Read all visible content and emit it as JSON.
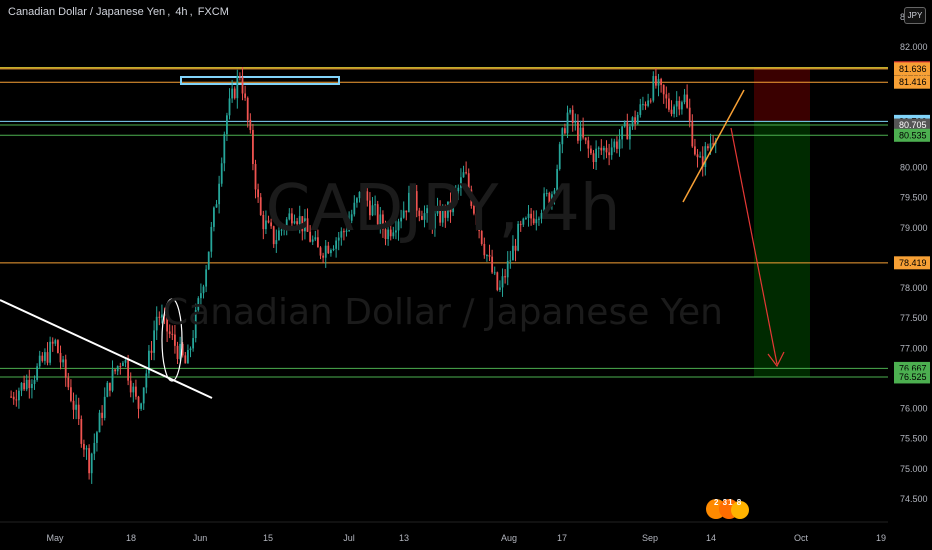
{
  "header": {
    "instrument": "Canadian Dollar / Japanese Yen",
    "timeframe": "4h",
    "exchange": "FXCM"
  },
  "watermark": {
    "ticker": "CADJPY, 4h",
    "name": "Canadian Dollar / Japanese Yen"
  },
  "currency_button": "JPY",
  "badge": {
    "text": "2 31 8"
  },
  "colors": {
    "background": "#000000",
    "bullish": "#26a69a",
    "bearish": "#ef5350",
    "stop_zone": "#3a0000",
    "target_zone": "#002a00",
    "white": "#ffffff",
    "orange": "#f7a035",
    "yellow": "#ffeb3b",
    "light_blue": "#81d4fa",
    "green": "#4caf50",
    "red": "#e53935"
  },
  "chart_data": {
    "type": "candlestick",
    "title": "Canadian Dollar / Japanese Yen, 4h, FXCM",
    "ylim": [
      74.2,
      82.5
    ],
    "y_ticks": [
      "82.0",
      "81.500",
      "80.500",
      "80.000",
      "79.500",
      "79.0",
      "78.0",
      "77.500",
      "77.0",
      "76.000",
      "75.500",
      "75.000",
      "74.500"
    ],
    "y_ticks_display": [
      "82.000",
      "81.500",
      "80.500",
      "80.000",
      "79.500",
      "79.000",
      "78.000",
      "77.500",
      "77.000",
      "76.000",
      "75.500",
      "75.000",
      "74.500"
    ],
    "x_ticks": [
      "May",
      "18",
      "Jun",
      "15",
      "Jul",
      "13",
      "Aug",
      "17",
      "Sep",
      "14",
      "Oct",
      "19"
    ],
    "approx_close_path": [
      [
        "Apr 22",
        76.2
      ],
      [
        "Apr 27",
        76.6
      ],
      [
        "May 1",
        77.1
      ],
      [
        "May 4",
        76.3
      ],
      [
        "May 8",
        75.1
      ],
      [
        "May 12",
        76.4
      ],
      [
        "May 15",
        76.9
      ],
      [
        "May 18",
        76.0
      ],
      [
        "May 20",
        76.7
      ],
      [
        "May 22",
        77.6
      ],
      [
        "May 26",
        77.0
      ],
      [
        "May 28",
        76.7
      ],
      [
        "Jun 1",
        78.4
      ],
      [
        "Jun 3",
        79.4
      ],
      [
        "Jun 5",
        80.8
      ],
      [
        "Jun 8",
        81.6
      ],
      [
        "Jun 10",
        80.5
      ],
      [
        "Jun 12",
        79.2
      ],
      [
        "Jun 15",
        78.8
      ],
      [
        "Jun 19",
        79.3
      ],
      [
        "Jun 24",
        78.6
      ],
      [
        "Jun 29",
        78.9
      ],
      [
        "Jul 3",
        79.6
      ],
      [
        "Jul 8",
        78.9
      ],
      [
        "Jul 13",
        79.5
      ],
      [
        "Jul 17",
        79.1
      ],
      [
        "Jul 21",
        79.3
      ],
      [
        "Jul 24",
        79.9
      ],
      [
        "Jul 28",
        78.7
      ],
      [
        "Jul 31",
        77.9
      ],
      [
        "Aug 4",
        78.9
      ],
      [
        "Aug 7",
        79.2
      ],
      [
        "Aug 11",
        79.6
      ],
      [
        "Aug 14",
        80.9
      ],
      [
        "Aug 19",
        80.2
      ],
      [
        "Aug 24",
        80.4
      ],
      [
        "Aug 28",
        80.8
      ],
      [
        "Sep 1",
        81.4
      ],
      [
        "Sep 4",
        81.0
      ],
      [
        "Sep 7",
        81.2
      ],
      [
        "Sep 10",
        80.0
      ],
      [
        "Sep 14",
        80.7
      ]
    ],
    "horizontal_levels": [
      {
        "price": 81.655,
        "label": "81.655",
        "color": "#ffeb3b",
        "label_bg": "#e53935"
      },
      {
        "price": 81.636,
        "label": "81.636",
        "color": "#f7a035",
        "label_bg": "#f7a035"
      },
      {
        "price": 81.416,
        "label": "81.416",
        "color": "#f7a035",
        "label_bg": "#f7a035"
      },
      {
        "price": 80.766,
        "label": "80.766",
        "color": "#81d4fa",
        "label_bg": "#81d4fa"
      },
      {
        "price": 80.705,
        "label": "80.705",
        "color": "#4caf50",
        "label_bg": "#555555"
      },
      {
        "price": 80.535,
        "label": "80.535",
        "color": "#4caf50",
        "label_bg": "#4caf50"
      },
      {
        "price": 78.419,
        "label": "78.419",
        "color": "#f7a035",
        "label_bg": "#f7a035"
      },
      {
        "price": 76.667,
        "label": "76.667",
        "color": "#4caf50",
        "label_bg": "#4caf50"
      },
      {
        "price": 76.525,
        "label": "76.525",
        "color": "#4caf50",
        "label_bg": "#4caf50"
      }
    ],
    "grid": false,
    "legend": "none"
  }
}
